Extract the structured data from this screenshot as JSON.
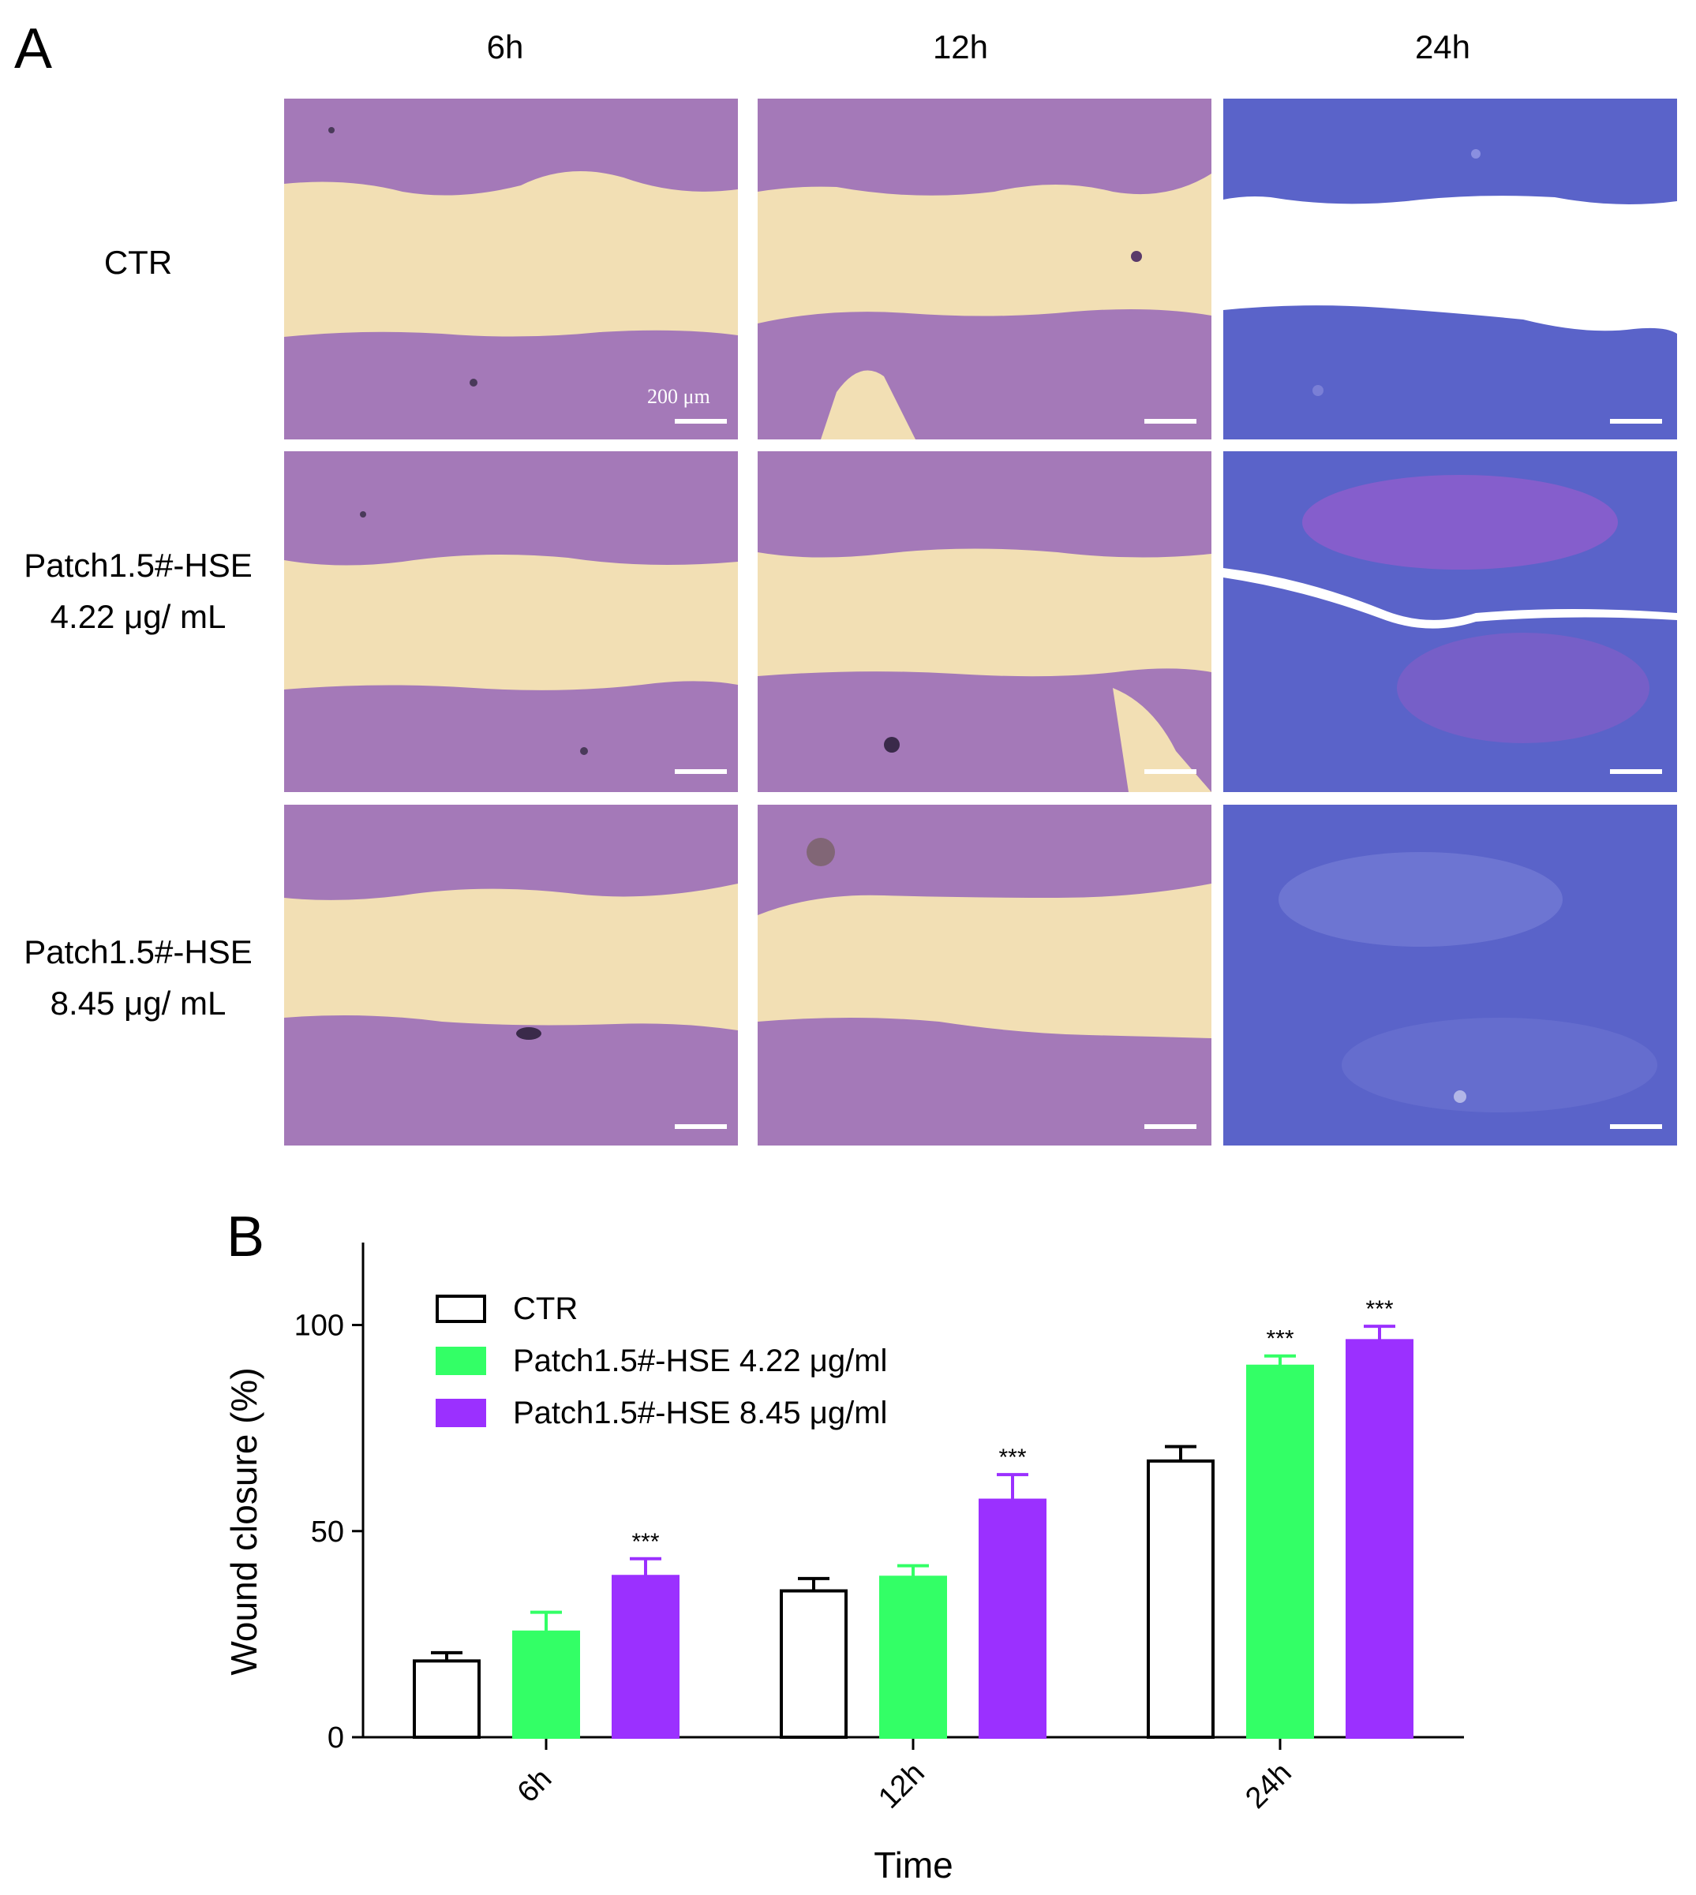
{
  "panel_a": {
    "letter": "A",
    "columns": [
      "6h",
      "12h",
      "24h"
    ],
    "rows": [
      {
        "label_line1": "CTR",
        "label_line2": ""
      },
      {
        "label_line1": "Patch1.5#-HSE",
        "label_line2": "4.22 μg/ mL"
      },
      {
        "label_line1": "Patch1.5#-HSE",
        "label_line2": "8.45 μg/ mL"
      }
    ],
    "scale_label": "200 μm",
    "colors": {
      "tissue_purple": "#a479b8",
      "tissue_blue": "#5a63c9",
      "gap_beige": "#f2dfb4"
    }
  },
  "panel_b": {
    "letter": "B"
  },
  "chart_data": {
    "type": "bar",
    "categories": [
      "6h",
      "12h",
      "24h"
    ],
    "series": [
      {
        "name": "CTR",
        "values": [
          18.5,
          35.5,
          67
        ],
        "errors": [
          2,
          3,
          3.5
        ],
        "color": "#ffffff",
        "stroke": "#000000",
        "significance": [
          "",
          "",
          ""
        ]
      },
      {
        "name": "Patch1.5#-HSE 4.22 μg/ml",
        "values": [
          25.5,
          38.8,
          90
        ],
        "errors": [
          4.8,
          2.8,
          2.5
        ],
        "color": "#33ff66",
        "stroke": "#33ff66",
        "significance": [
          "",
          "",
          "***"
        ]
      },
      {
        "name": "Patch1.5#-HSE 8.45 μg/ml",
        "values": [
          39,
          57.5,
          96.2
        ],
        "errors": [
          4.3,
          6.2,
          3.5
        ],
        "color": "#9b30ff",
        "stroke": "#9b30ff",
        "significance": [
          "***",
          "***",
          "***"
        ]
      }
    ],
    "xlabel": "Time",
    "ylabel": "Wound closure (%)",
    "ylim": [
      0,
      120
    ],
    "yticks": [
      0,
      50,
      100
    ],
    "legend_position": "top-left",
    "grid": false
  }
}
